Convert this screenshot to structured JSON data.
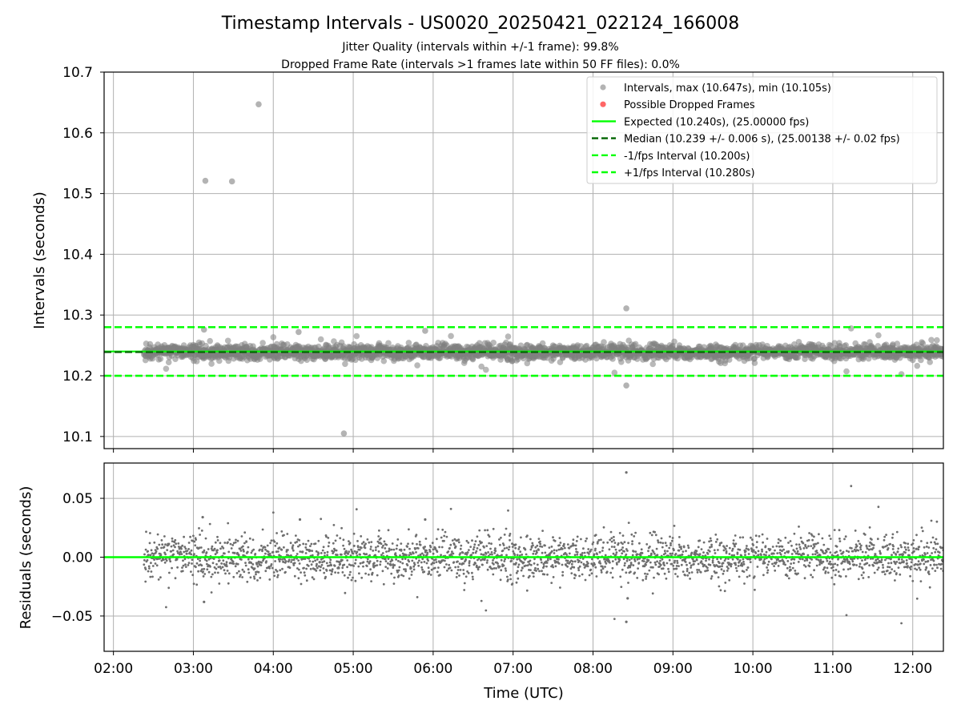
{
  "title": "Timestamp Intervals - US0020_20250421_022124_166008",
  "subtitle_line1": "Jitter Quality (intervals within +/-1 frame): 99.8%",
  "subtitle_line2": "Dropped Frame Rate (intervals >1 frames late within 50 FF files): 0.0%",
  "colors": {
    "points": "#808080",
    "dropped": "#ff0000",
    "expected": "#00ff00",
    "median": "#006400",
    "fps_band": "#00ff00",
    "grid": "#b0b0b0"
  },
  "chart_data": [
    {
      "type": "scatter",
      "ylabel": "Intervals (seconds)",
      "xlim": [
        "01:53",
        "12:23"
      ],
      "ylim": [
        10.08,
        10.7
      ],
      "yticks": [
        "10.1",
        "10.2",
        "10.3",
        "10.4",
        "10.5",
        "10.6",
        "10.7"
      ],
      "grid": true,
      "legend_placement": "top-right",
      "legend": [
        {
          "label": "Intervals, max (10.647s), min (10.105s)",
          "kind": "point",
          "color": "#808080"
        },
        {
          "label": "Possible Dropped Frames",
          "kind": "point",
          "color": "#ff0000"
        },
        {
          "label": "Expected (10.240s), (25.00000 fps)",
          "kind": "line",
          "color": "#00ff00"
        },
        {
          "label": "Median (10.239 +/- 0.006 s), (25.00138 +/- 0.02 fps)",
          "kind": "dash",
          "color": "#006400"
        },
        {
          "label": "-1/fps Interval (10.200s)",
          "kind": "dash",
          "color": "#00ff00"
        },
        {
          "label": "+1/fps Interval (10.280s)",
          "kind": "dash",
          "color": "#00ff00"
        }
      ],
      "reference_lines": {
        "expected": 10.24,
        "median": 10.239,
        "minus_fps": 10.2,
        "plus_fps": 10.28
      },
      "outliers": [
        {
          "x": "03:09",
          "y": 10.521
        },
        {
          "x": "03:29",
          "y": 10.52
        },
        {
          "x": "03:49",
          "y": 10.647
        },
        {
          "x": "04:53",
          "y": 10.105
        },
        {
          "x": "08:25",
          "y": 10.311
        },
        {
          "x": "08:25",
          "y": 10.184
        },
        {
          "x": "03:08",
          "y": 10.276
        },
        {
          "x": "05:54",
          "y": 10.274
        },
        {
          "x": "04:19",
          "y": 10.272
        }
      ],
      "dense_series": {
        "x_start": "02:23",
        "x_end": "12:23",
        "center": 10.239,
        "spread": 0.006,
        "name": "Intervals"
      }
    },
    {
      "type": "scatter",
      "xlabel": "Time (UTC)",
      "ylabel": "Residuals (seconds)",
      "xlim": [
        "01:53",
        "12:23"
      ],
      "ylim": [
        -0.08,
        0.08
      ],
      "yticks": [
        "−0.05",
        "0.00",
        "0.05"
      ],
      "xticks": [
        "02:00",
        "03:00",
        "04:00",
        "05:00",
        "06:00",
        "07:00",
        "08:00",
        "09:00",
        "10:00",
        "11:00",
        "12:00"
      ],
      "grid": true,
      "reference_line": 0.0,
      "outliers": [
        {
          "x": "08:25",
          "y": 0.072
        },
        {
          "x": "08:25",
          "y": -0.055
        },
        {
          "x": "08:26",
          "y": -0.035
        },
        {
          "x": "03:07",
          "y": 0.034
        },
        {
          "x": "03:08",
          "y": -0.038
        },
        {
          "x": "05:54",
          "y": 0.032
        },
        {
          "x": "04:20",
          "y": 0.032
        }
      ]
    }
  ]
}
